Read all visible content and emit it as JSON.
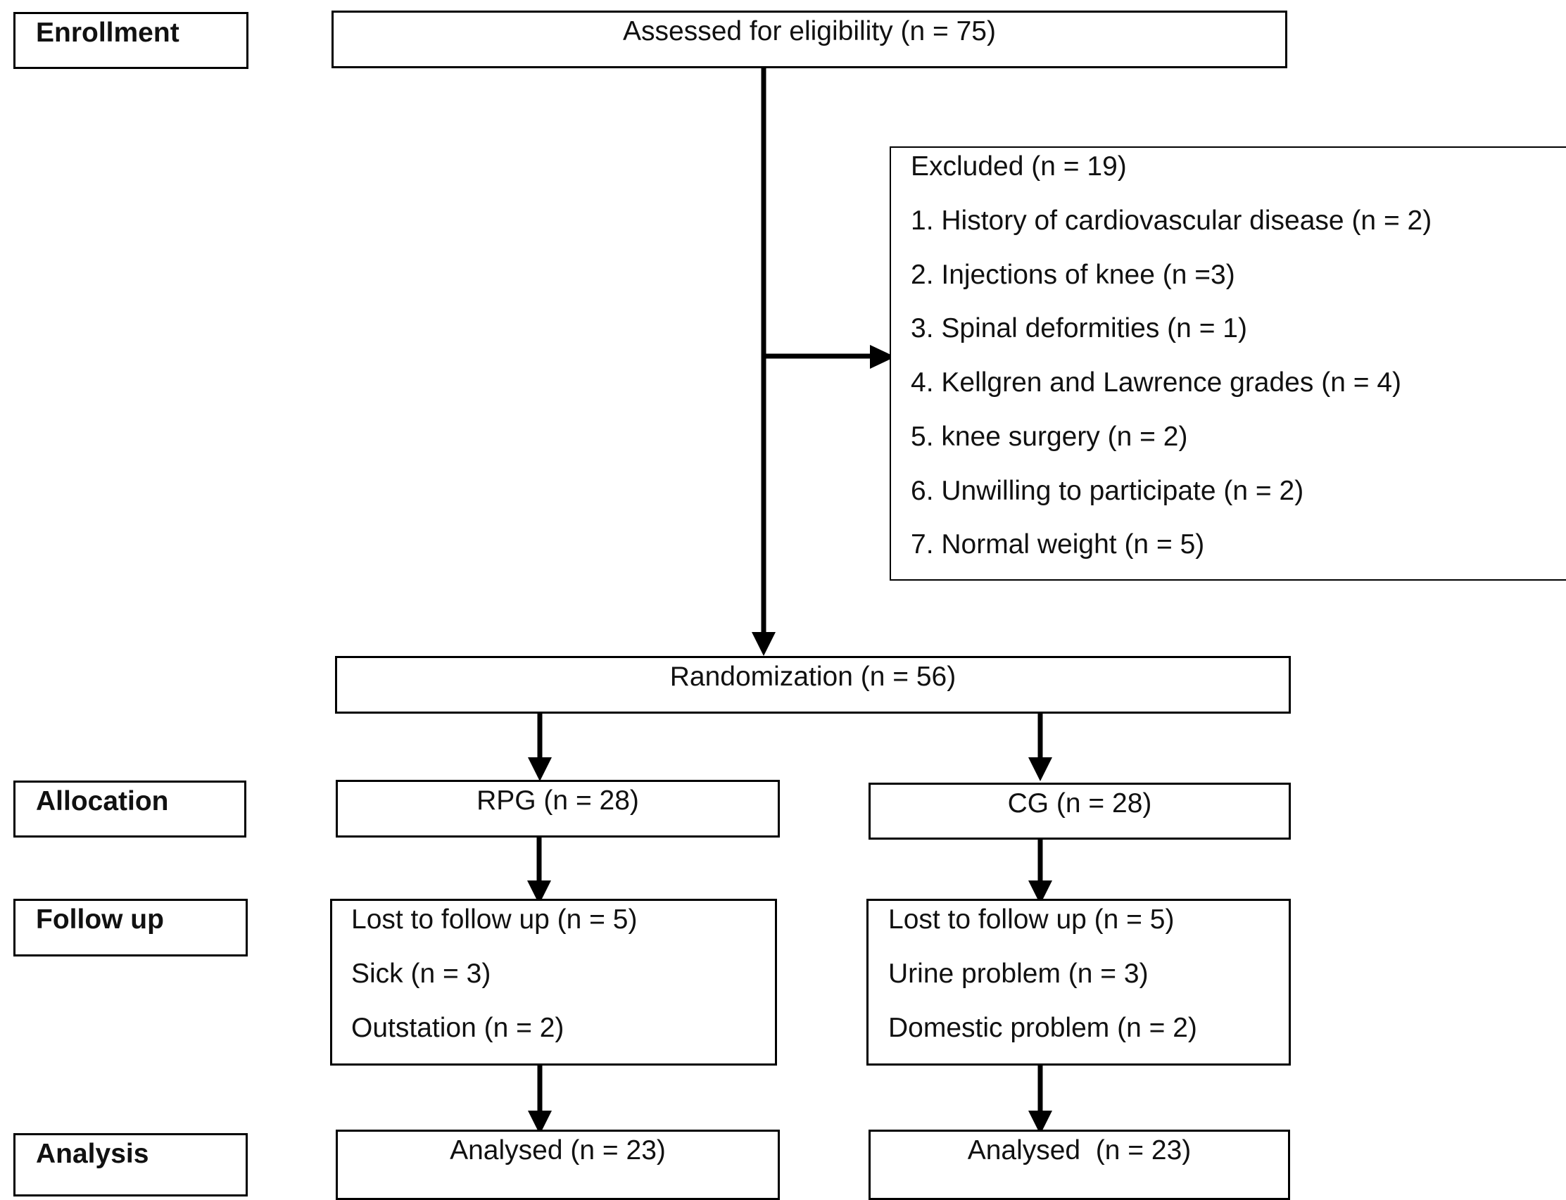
{
  "stages": {
    "enrollment": "Enrollment",
    "allocation": "Allocation",
    "follow_up": "Follow up",
    "analysis": "Analysis"
  },
  "assessed": "Assessed for eligibility (n = 75)",
  "excluded": {
    "title": "Excluded (n = 19)",
    "items": [
      "1. History of cardiovascular disease (n = 2)",
      "2. Injections of knee (n =3)",
      "3. Spinal deformities (n = 1)",
      "4. Kellgren and Lawrence grades (n = 4)",
      "5. knee surgery (n = 2)",
      "6. Unwilling to participate (n = 2)",
      "7. Normal weight (n = 5)"
    ]
  },
  "randomization": "Randomization (n = 56)",
  "groups": [
    {
      "allocation": "RPG (n = 28)",
      "follow_up": [
        "Lost to follow up (n = 5)",
        "Sick (n = 3)",
        "Outstation (n = 2)"
      ],
      "analysis": "Analysed (n = 23)"
    },
    {
      "allocation": "CG (n = 28)",
      "follow_up": [
        "Lost to follow up (n = 5)",
        "Urine problem (n = 3)",
        "Domestic problem (n = 2)"
      ],
      "analysis": "Analysed  (n = 23)"
    }
  ]
}
